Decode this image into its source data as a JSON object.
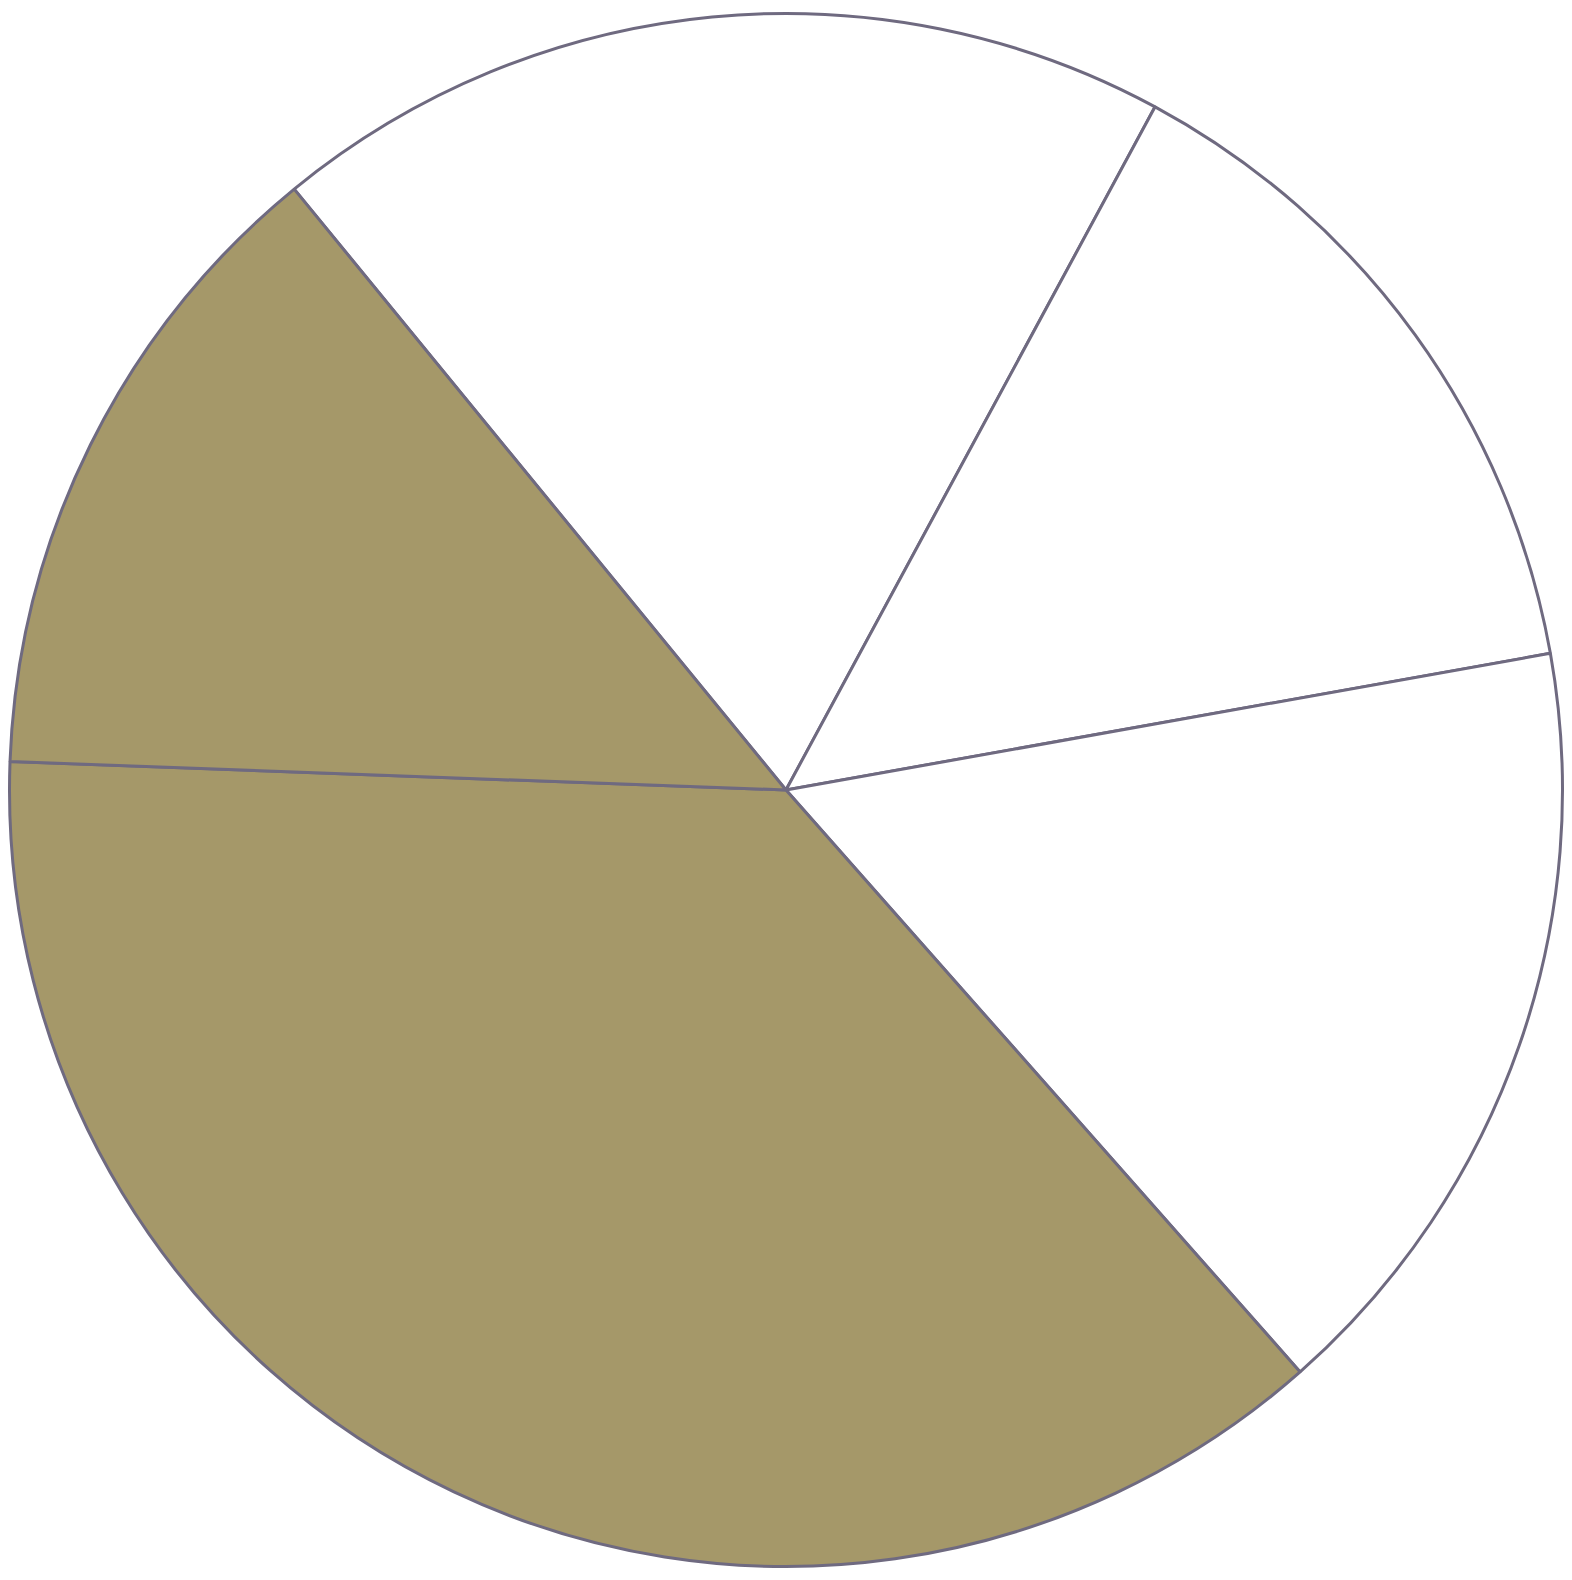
{
  "chart_data": {
    "type": "pie",
    "categories": [
      null,
      null,
      null,
      null,
      null
    ],
    "values": [
      18.8,
      14.3,
      16.3,
      37.1,
      13.5
    ],
    "colors": [
      "#ffffff",
      "#ffffff",
      "#ffffff",
      "#a59869",
      "#a59869"
    ],
    "legend": false
  }
}
